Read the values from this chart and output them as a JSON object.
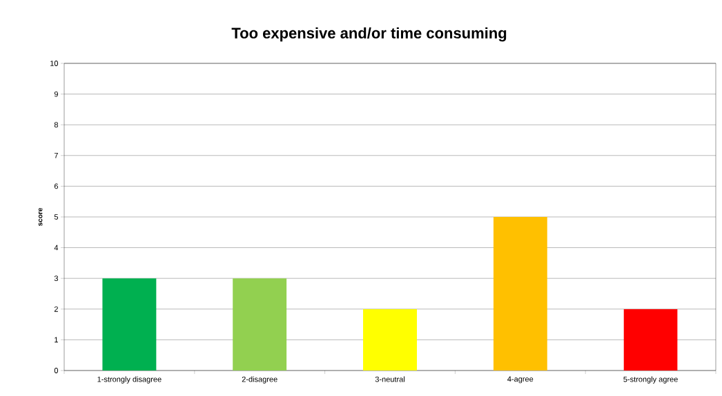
{
  "chart_data": {
    "type": "bar",
    "title": "Too expensive and/or time consuming",
    "ylabel": "score",
    "categories": [
      "1-strongly disagree",
      "2-disagree",
      "3-neutral",
      "4-agree",
      "5-strongly agree"
    ],
    "values": [
      3,
      3,
      2,
      5,
      2
    ],
    "colors": [
      "#00b050",
      "#92d050",
      "#ffff00",
      "#ffc000",
      "#ff0000"
    ],
    "ylim": [
      0,
      10
    ],
    "yticks": [
      0,
      1,
      2,
      3,
      4,
      5,
      6,
      7,
      8,
      9,
      10
    ],
    "grid": "y"
  }
}
